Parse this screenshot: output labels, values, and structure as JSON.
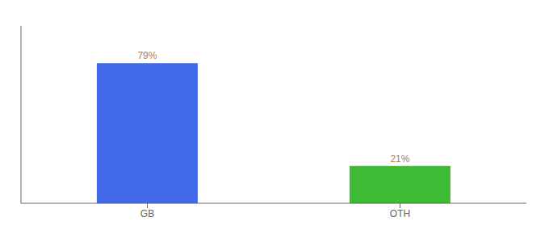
{
  "chart_data": {
    "type": "bar",
    "categories": [
      "GB",
      "OTH"
    ],
    "values": [
      79,
      21
    ],
    "value_labels": [
      "79%",
      "21%"
    ],
    "data_labels": true,
    "colors": [
      "#4169e8",
      "#3dbb35"
    ],
    "ylim": [
      0,
      100
    ],
    "grid": false,
    "tick_labels": "x"
  }
}
